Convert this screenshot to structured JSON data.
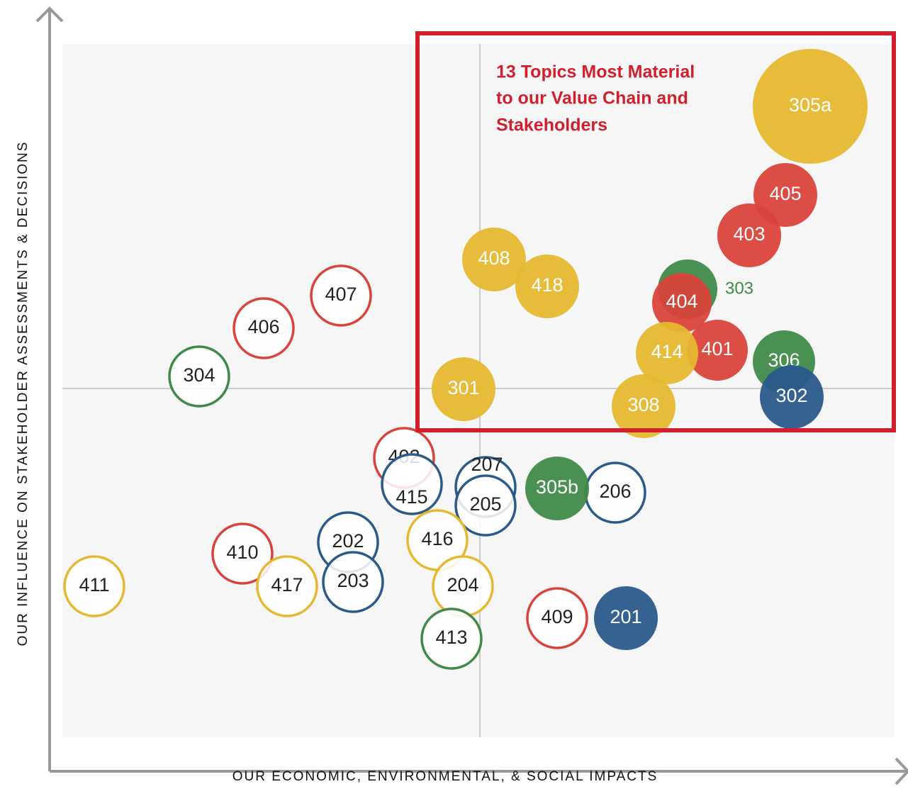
{
  "callout": [
    "13 Topics Most Material",
    "to our Value Chain and",
    "Stakeholders"
  ],
  "x_axis_label": "OUR ECONOMIC, ENVIRONMENTAL, & SOCIAL IMPACTS",
  "y_axis_label": "OUR INFLUENCE ON STAKEHOLDER ASSESSMENTS & DECISIONS",
  "nodes": [
    {
      "label": "407",
      "color": "#d9433b",
      "filled": false
    },
    {
      "label": "406",
      "color": "#d9433b",
      "filled": false
    },
    {
      "label": "304",
      "color": "#3f8a49",
      "filled": false
    },
    {
      "label": "402",
      "color": "#d9433b",
      "filled": false
    },
    {
      "label": "415",
      "color": "#2a5a8a",
      "filled": false
    },
    {
      "label": "207",
      "color": "#2a5a8a",
      "filled": false
    },
    {
      "label": "205",
      "color": "#2a5a8a",
      "filled": false
    },
    {
      "label": "206",
      "color": "#2a5a8a",
      "filled": false
    },
    {
      "label": "416",
      "color": "#e6b830",
      "filled": false
    },
    {
      "label": "202",
      "color": "#2a5a8a",
      "filled": false
    },
    {
      "label": "410",
      "color": "#d9433b",
      "filled": false
    },
    {
      "label": "417",
      "color": "#e6b830",
      "filled": false
    },
    {
      "label": "203",
      "color": "#2a5a8a",
      "filled": false
    },
    {
      "label": "204",
      "color": "#e6b830",
      "filled": false
    },
    {
      "label": "411",
      "color": "#e6b830",
      "filled": false
    },
    {
      "label": "409",
      "color": "#d9433b",
      "filled": false
    },
    {
      "label": "413",
      "color": "#3f8a49",
      "filled": false
    },
    {
      "label": "305b",
      "color": "#3f8a49",
      "filled": true
    },
    {
      "label": "201",
      "color": "#2a5a8a",
      "filled": true
    },
    {
      "label": "305a",
      "color": "#e6b830",
      "filled": true
    },
    {
      "label": "405",
      "color": "#d9433b",
      "filled": true
    },
    {
      "label": "403",
      "color": "#d9433b",
      "filled": true
    },
    {
      "label": "408",
      "color": "#e6b830",
      "filled": true
    },
    {
      "label": "418",
      "color": "#e6b830",
      "filled": true
    },
    {
      "label": "303",
      "color": "#3f8a49",
      "filled": true
    },
    {
      "label": "404",
      "color": "#d9433b",
      "filled": true
    },
    {
      "label": "401",
      "color": "#d9433b",
      "filled": true
    },
    {
      "label": "414",
      "color": "#e6b830",
      "filled": true
    },
    {
      "label": "306",
      "color": "#3f8a49",
      "filled": true
    },
    {
      "label": "302",
      "color": "#2a5a8a",
      "filled": true
    },
    {
      "label": "301",
      "color": "#e6b830",
      "filled": true
    },
    {
      "label": "308",
      "color": "#e6b830",
      "filled": true
    }
  ]
}
